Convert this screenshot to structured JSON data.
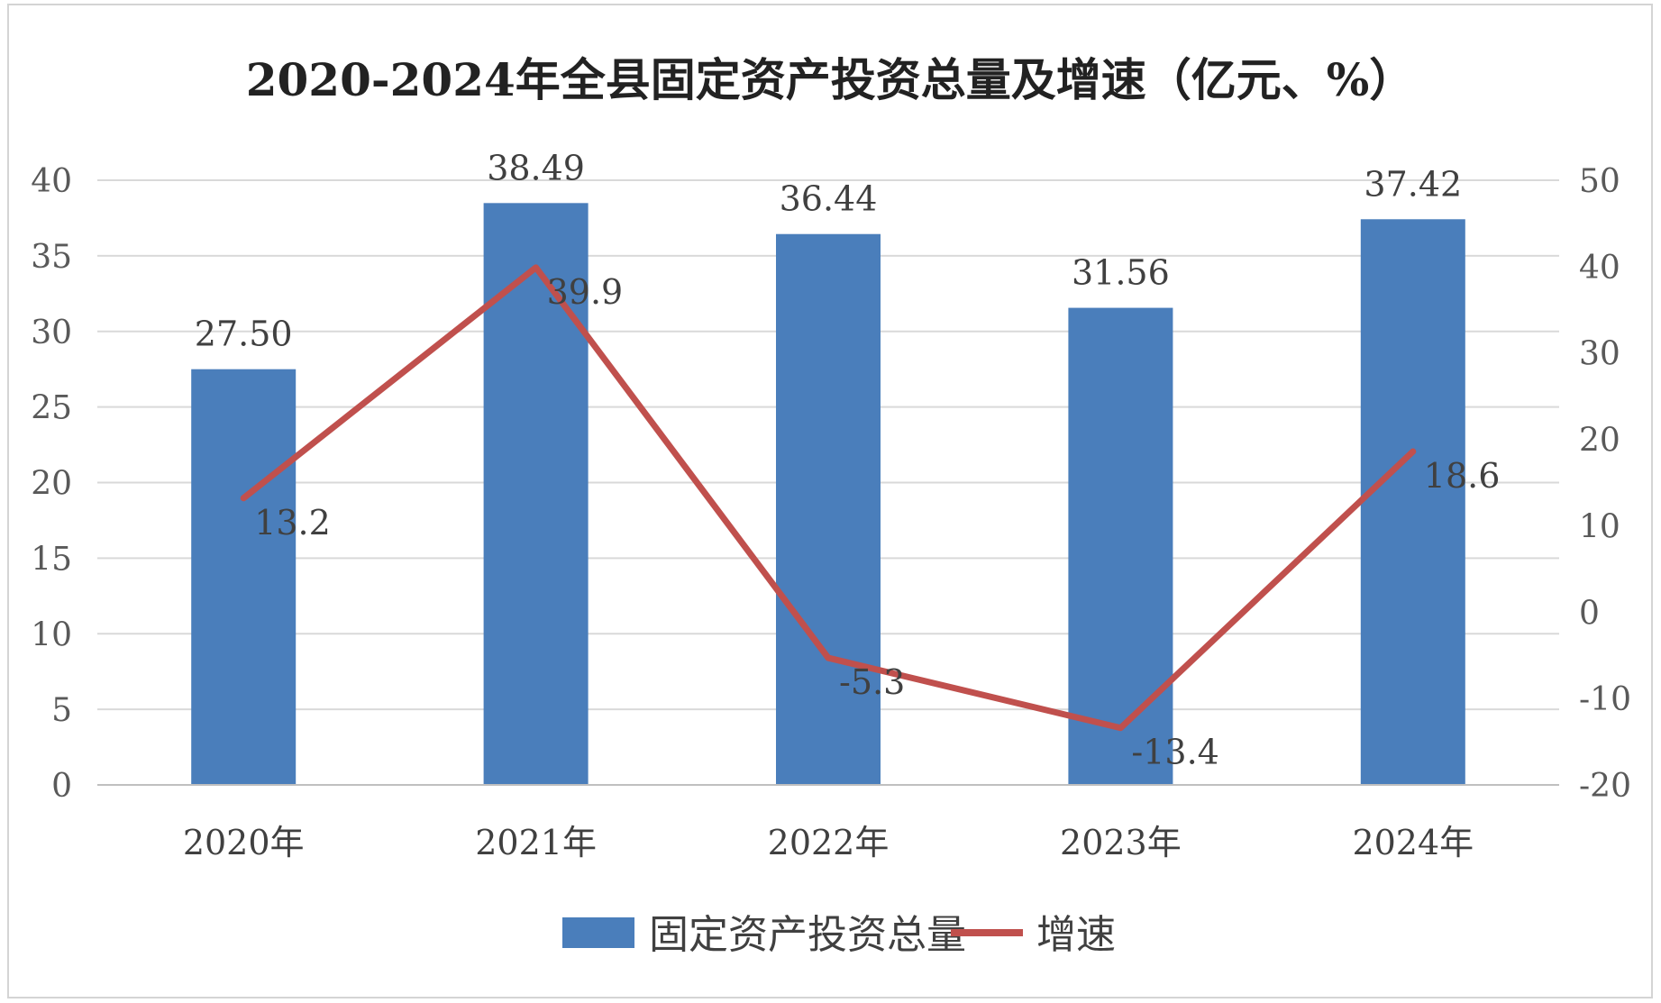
{
  "colors": {
    "bar": "#4a7ebb",
    "line": "#c0504d",
    "grid": "#d9d9d9",
    "axis": "#bfbfbf"
  },
  "chart_data": {
    "type": "bar",
    "title": "2020-2024年全县固定资产投资总量及增速（亿元、%）",
    "categories": [
      "2020年",
      "2021年",
      "2022年",
      "2023年",
      "2024年"
    ],
    "series": [
      {
        "name": "固定资产投资总量",
        "type": "bar",
        "axis": "left",
        "values": [
          27.5,
          38.49,
          36.44,
          31.56,
          37.42
        ],
        "labels": [
          "27.50",
          "38.49",
          "36.44",
          "31.56",
          "37.42"
        ]
      },
      {
        "name": "增速",
        "type": "line",
        "axis": "right",
        "values": [
          13.2,
          39.9,
          -5.3,
          -13.4,
          18.6
        ],
        "labels": [
          "13.2",
          "39.9",
          "-5.3",
          "-13.4",
          "18.6"
        ]
      }
    ],
    "y_left": {
      "ylim": [
        0,
        40
      ],
      "ticks": [
        "0",
        "5",
        "10",
        "15",
        "20",
        "25",
        "30",
        "35",
        "40"
      ]
    },
    "y_right": {
      "ylim": [
        -20,
        50
      ],
      "ticks": [
        "-20",
        "-10",
        "0",
        "10",
        "20",
        "30",
        "40",
        "50"
      ]
    },
    "grid": true,
    "legend_position": "bottom"
  }
}
